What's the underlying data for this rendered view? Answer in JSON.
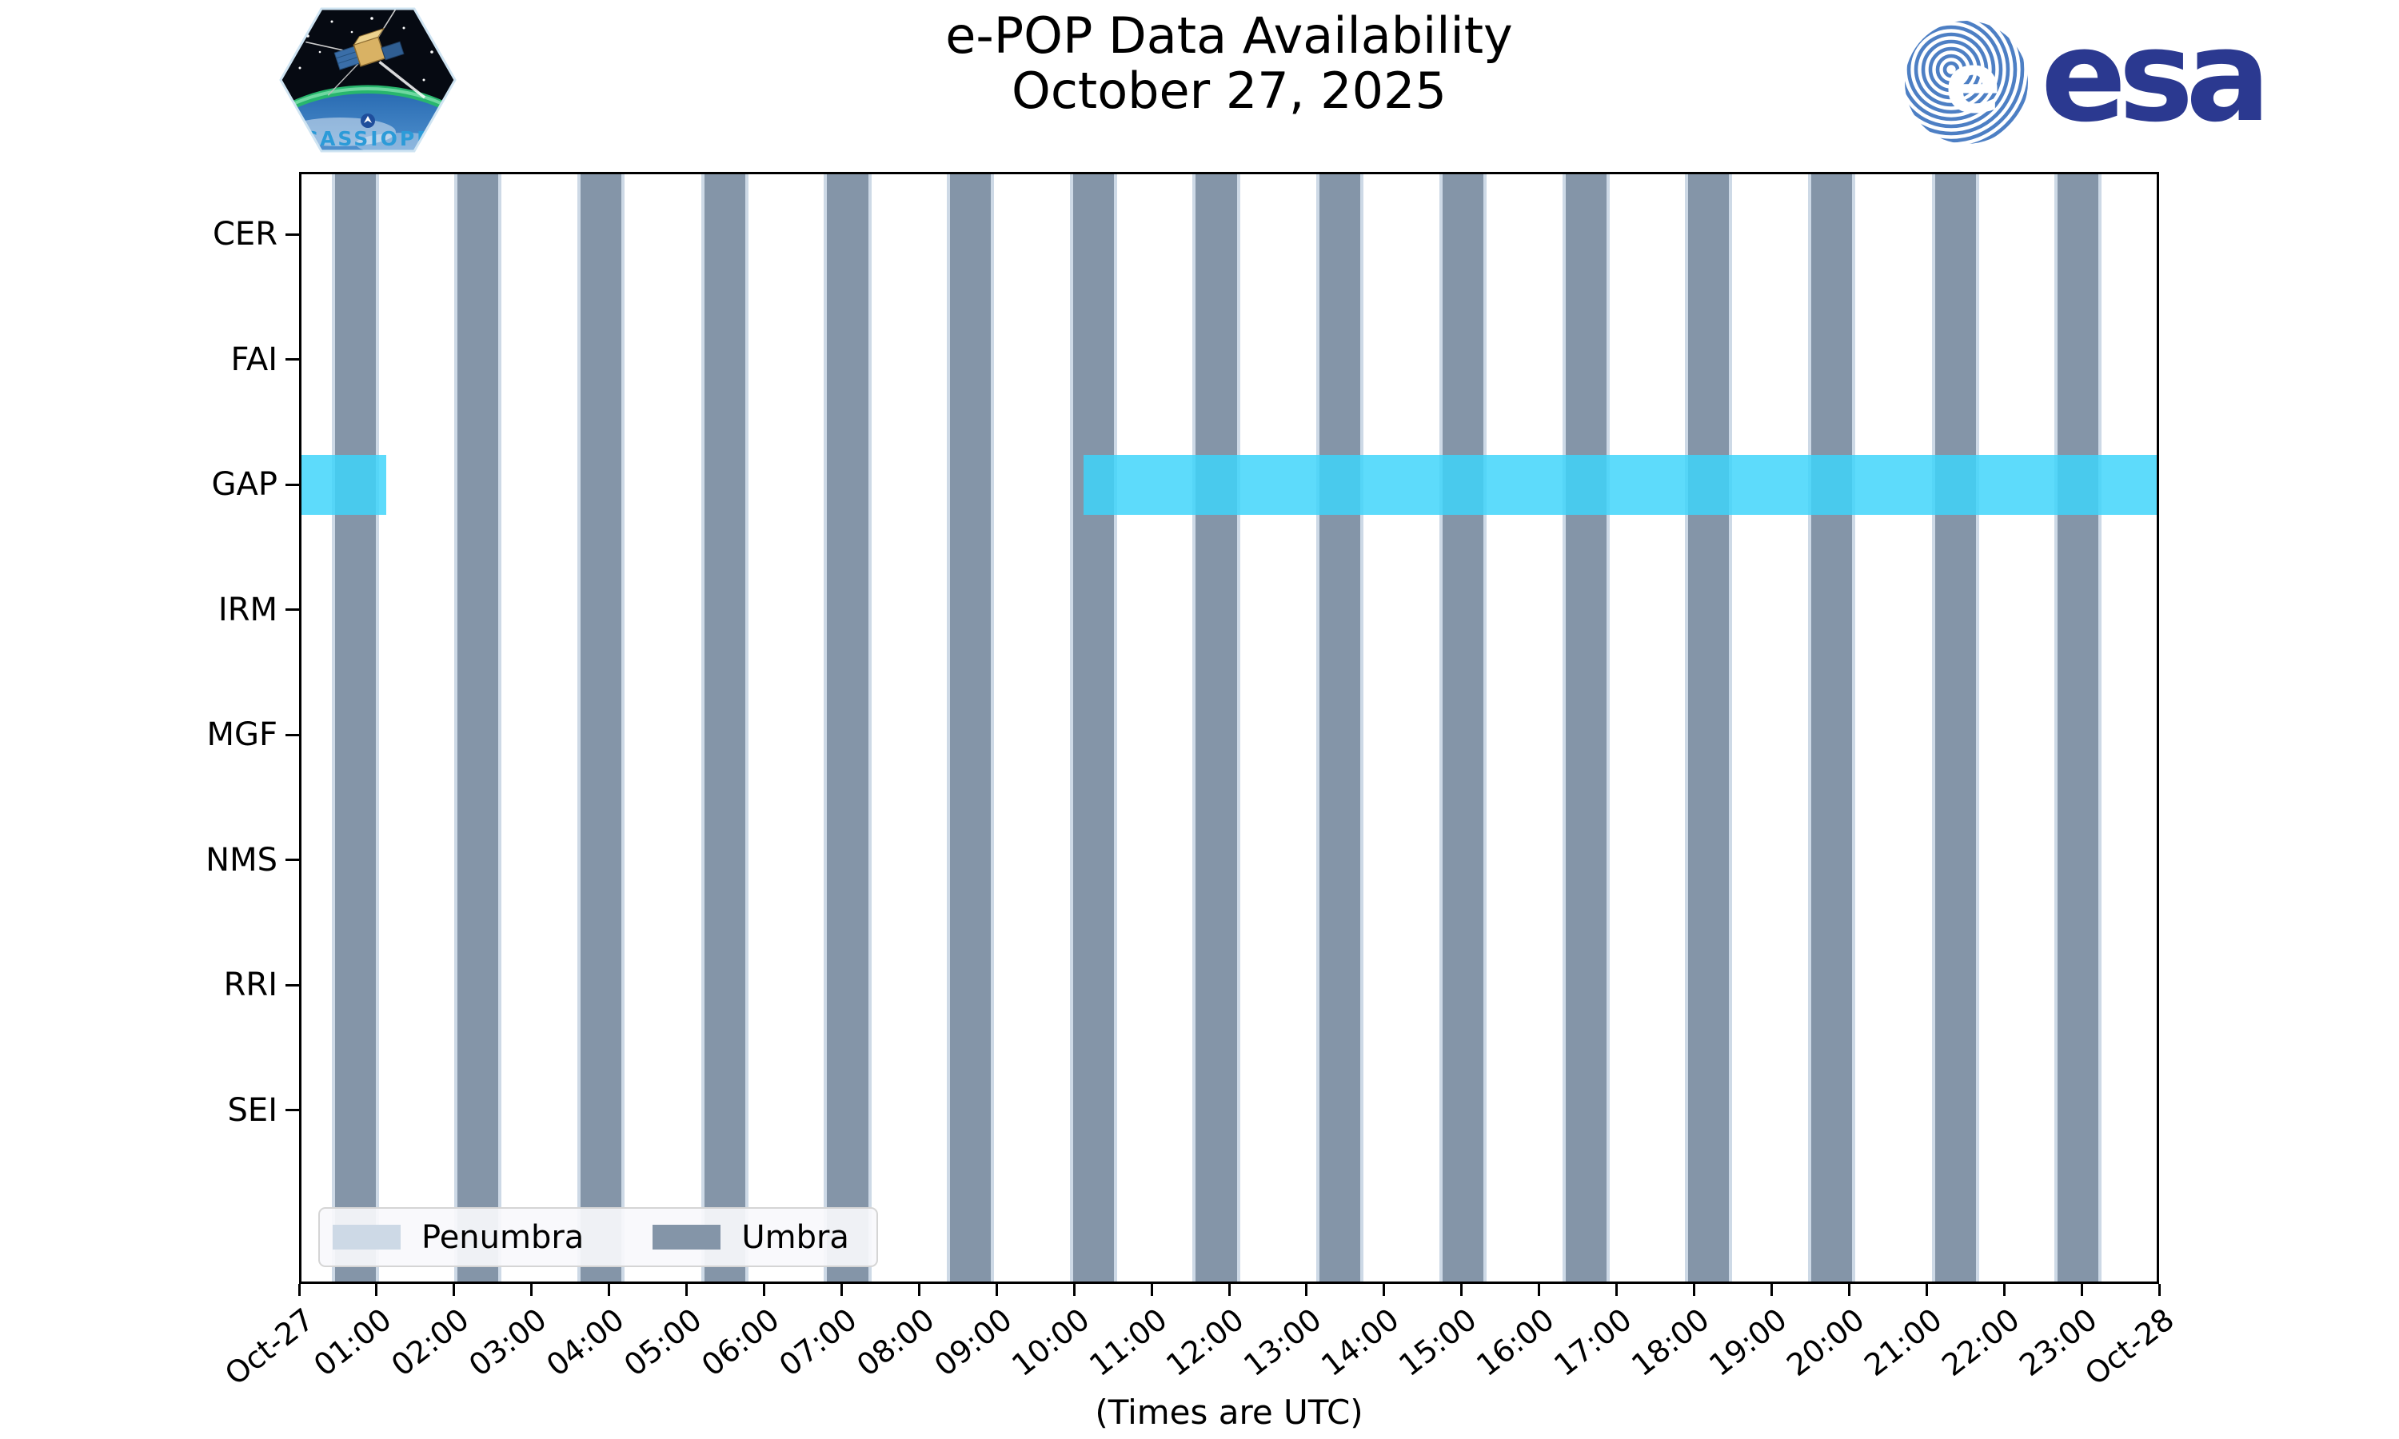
{
  "header": {
    "title_line1": "e-POP Data Availability",
    "title_line2": "October 27, 2025",
    "cassiope_patch_label": "CASSIOPE",
    "esa_wordmark": "esa"
  },
  "chart_data": {
    "type": "timeline",
    "title": "e-POP Data Availability",
    "subtitle": "October 27, 2025",
    "xlabel": "(Times are UTC)",
    "x_range_hours": [
      0,
      24
    ],
    "x_tick_labels": [
      "Oct-27",
      "01:00",
      "02:00",
      "03:00",
      "04:00",
      "05:00",
      "06:00",
      "07:00",
      "08:00",
      "09:00",
      "10:00",
      "11:00",
      "12:00",
      "13:00",
      "14:00",
      "15:00",
      "16:00",
      "17:00",
      "18:00",
      "19:00",
      "20:00",
      "21:00",
      "22:00",
      "23:00",
      "Oct-28"
    ],
    "instruments": [
      "CER",
      "FAI",
      "GAP",
      "IRM",
      "MGF",
      "NMS",
      "RRI",
      "SEI"
    ],
    "availability_hours": {
      "CER": [],
      "FAI": [],
      "GAP": [
        [
          0.0,
          1.1
        ],
        [
          10.12,
          24.0
        ]
      ],
      "IRM": [],
      "MGF": [],
      "NMS": [],
      "RRI": [],
      "SEI": []
    },
    "umbra_hours": [
      [
        0.43,
        0.96
      ],
      [
        2.02,
        2.55
      ],
      [
        3.61,
        4.14
      ],
      [
        5.21,
        5.74
      ],
      [
        6.8,
        7.33
      ],
      [
        8.39,
        8.92
      ],
      [
        9.98,
        10.51
      ],
      [
        11.57,
        12.1
      ],
      [
        13.17,
        13.7
      ],
      [
        14.76,
        15.29
      ],
      [
        16.35,
        16.88
      ],
      [
        17.94,
        18.47
      ],
      [
        19.53,
        20.06
      ],
      [
        21.13,
        21.66
      ],
      [
        22.72,
        23.25
      ]
    ],
    "legend": {
      "position": "lower left",
      "items": [
        {
          "label": "Penumbra",
          "color": "#CDD9E6"
        },
        {
          "label": "Umbra",
          "color": "#8495A8"
        }
      ]
    },
    "colors": {
      "availability": "rgba(62,212,250,0.84)",
      "umbra": "#8495A8",
      "penumbra": "#CDD9E6",
      "spine": "#000000"
    }
  }
}
